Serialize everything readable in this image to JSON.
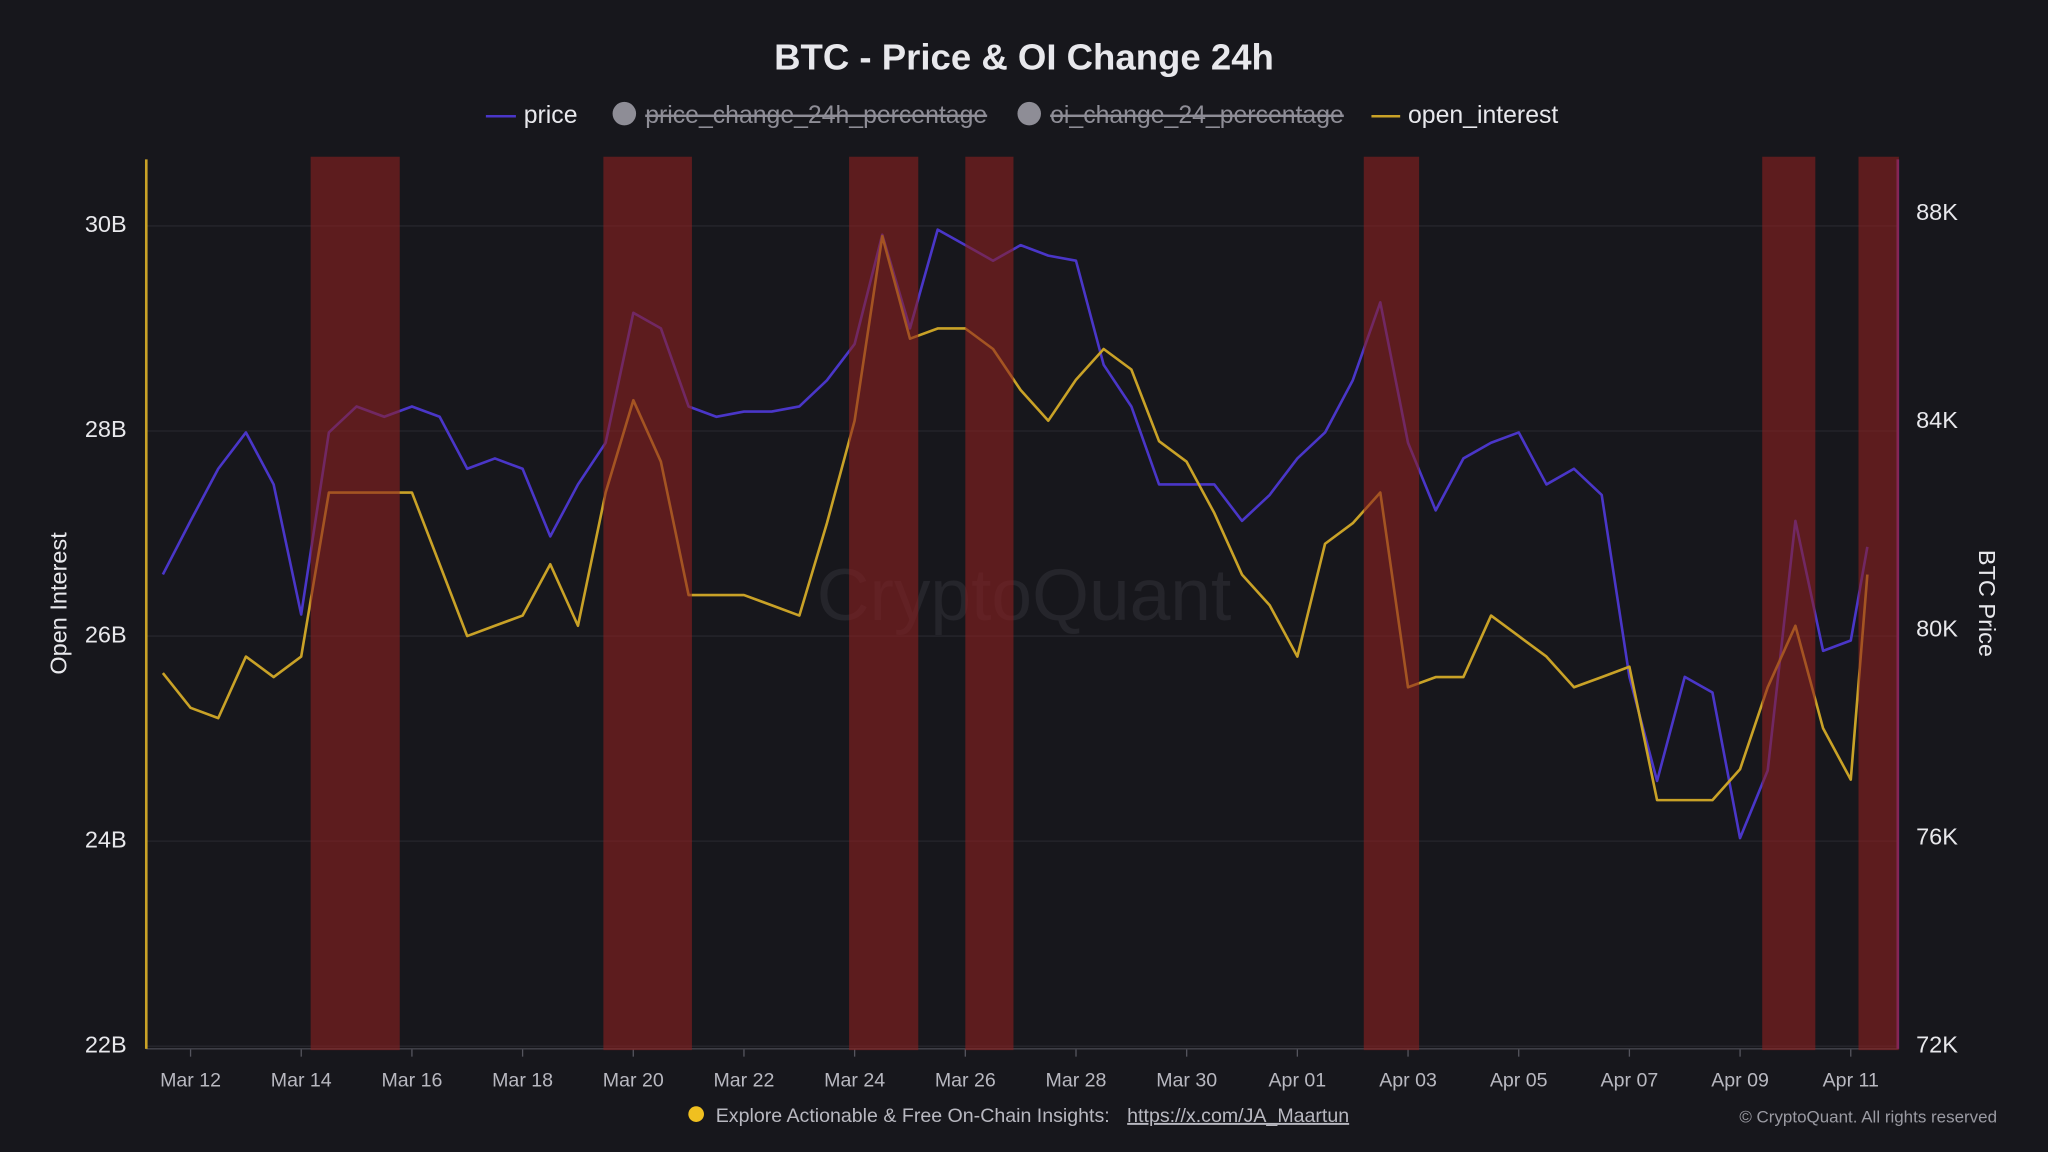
{
  "chart_data": {
    "type": "line",
    "title": "BTC - Price & OI Change 24h",
    "x": [
      -0.5,
      0,
      0.5,
      1,
      1.5,
      2,
      2.5,
      3,
      3.5,
      4,
      4.5,
      5,
      5.5,
      6,
      6.5,
      7,
      7.5,
      8,
      8.5,
      9,
      9.5,
      10,
      10.5,
      11,
      11.5,
      12,
      12.5,
      13,
      13.5,
      14,
      14.5,
      15,
      15.5,
      16,
      16.5,
      17,
      17.5,
      18,
      18.5,
      19,
      19.5,
      20,
      20.5,
      21,
      21.5,
      22,
      22.5,
      23,
      23.5,
      24,
      24.5,
      25,
      25.5,
      26,
      26.5,
      27,
      27.5,
      28,
      28.5,
      29,
      29.5,
      30,
      30.3
    ],
    "xlim": [
      -0.8,
      30.85
    ],
    "xticks": [
      {
        "value": 0,
        "label": "Mar 12"
      },
      {
        "value": 2,
        "label": "Mar 14"
      },
      {
        "value": 4,
        "label": "Mar 16"
      },
      {
        "value": 6,
        "label": "Mar 18"
      },
      {
        "value": 8,
        "label": "Mar 20"
      },
      {
        "value": 10,
        "label": "Mar 22"
      },
      {
        "value": 12,
        "label": "Mar 24"
      },
      {
        "value": 14,
        "label": "Mar 26"
      },
      {
        "value": 16,
        "label": "Mar 28"
      },
      {
        "value": 18,
        "label": "Mar 30"
      },
      {
        "value": 20,
        "label": "Apr 01"
      },
      {
        "value": 22,
        "label": "Apr 03"
      },
      {
        "value": 24,
        "label": "Apr 05"
      },
      {
        "value": 26,
        "label": "Apr 07"
      },
      {
        "value": 28,
        "label": "Apr 09"
      },
      {
        "value": 30,
        "label": "Apr 11"
      }
    ],
    "ylabel": "Open Interest",
    "ylim": [
      22,
      30.675
    ],
    "yticks": [
      {
        "value": 22,
        "label": "22B"
      },
      {
        "value": 24,
        "label": "24B"
      },
      {
        "value": 26,
        "label": "26B"
      },
      {
        "value": 28,
        "label": "28B"
      },
      {
        "value": 30,
        "label": "30B"
      }
    ],
    "y2label": "BTC Price",
    "y2lim": [
      72000,
      89100
    ],
    "y2ticks": [
      {
        "value": 72000,
        "label": "72K"
      },
      {
        "value": 76000,
        "label": "76K"
      },
      {
        "value": 80000,
        "label": "80K"
      },
      {
        "value": 84000,
        "label": "84K"
      },
      {
        "value": 88000,
        "label": "88K"
      }
    ],
    "grid": true,
    "series": [
      {
        "name": "price",
        "color": "#4a36c8",
        "axis": "y2",
        "values": [
          81070,
          82100,
          83100,
          83800,
          82800,
          80300,
          83800,
          84300,
          84100,
          84300,
          84100,
          83100,
          83300,
          83100,
          81800,
          82800,
          83600,
          86100,
          85800,
          84300,
          84100,
          84200,
          84200,
          84300,
          84800,
          85500,
          87600,
          85800,
          87700,
          87400,
          87100,
          87400,
          87200,
          87100,
          85100,
          84300,
          82800,
          82800,
          82800,
          82100,
          82600,
          83300,
          83800,
          84800,
          86300,
          83600,
          82300,
          83300,
          83600,
          83800,
          82800,
          83100,
          82600,
          79100,
          77100,
          79100,
          78800,
          76000,
          77300,
          82100,
          79600,
          79800,
          81600
        ]
      },
      {
        "name": "open_interest",
        "color": "#c9a227",
        "values": [
          25.64,
          25.3,
          25.2,
          25.8,
          25.6,
          25.8,
          27.4,
          27.4,
          27.4,
          27.4,
          26.7,
          26.0,
          26.1,
          26.2,
          26.7,
          26.1,
          27.4,
          28.3,
          27.7,
          26.4,
          26.4,
          26.4,
          26.3,
          26.2,
          27.1,
          28.1,
          29.9,
          28.9,
          29.0,
          29.0,
          28.8,
          28.4,
          28.1,
          28.5,
          28.8,
          28.6,
          27.9,
          27.7,
          27.2,
          26.6,
          26.3,
          25.8,
          26.9,
          27.1,
          27.4,
          25.5,
          25.6,
          25.6,
          26.2,
          26.0,
          25.8,
          25.5,
          25.6,
          25.7,
          24.4,
          24.4,
          24.4,
          24.7,
          25.5,
          26.1,
          25.1,
          24.6,
          26.6
        ]
      }
    ],
    "hidden_series": [
      {
        "name": "price_change_24h_percentage",
        "color": "#8e8d96"
      },
      {
        "name": "oi_change_24_percentage",
        "color": "#8e8d96"
      }
    ],
    "highlight_ranges": [
      [
        2.17,
        3.78
      ],
      [
        7.46,
        9.06
      ],
      [
        11.9,
        13.15
      ],
      [
        14.0,
        14.87
      ],
      [
        21.2,
        22.2
      ],
      [
        28.4,
        29.36
      ],
      [
        30.14,
        30.87
      ]
    ],
    "highlight_color": "#8c2020",
    "watermark": "CryptoQuant",
    "footer": "Explore Actionable & Free On-Chain Insights:",
    "footer_link": "https://x.com/JA_Maartun",
    "copyright": "© CryptoQuant. All rights reserved"
  }
}
